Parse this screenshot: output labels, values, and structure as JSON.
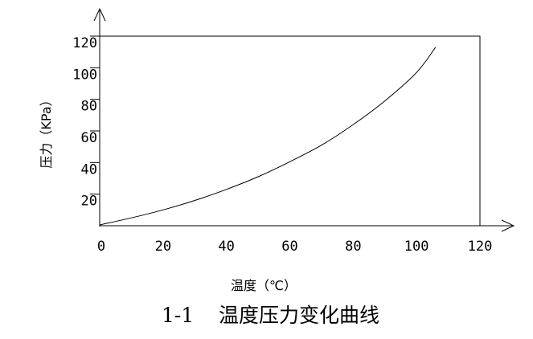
{
  "chart_data": {
    "type": "line",
    "title": "",
    "xlabel": "温度（℃）",
    "ylabel": "压力（KPa）",
    "xlim": [
      0,
      120
    ],
    "ylim": [
      0,
      120
    ],
    "x_ticks": [
      "0",
      "20",
      "40",
      "60",
      "80",
      "100",
      "120"
    ],
    "y_ticks": [
      "20",
      "40",
      "60",
      "80",
      "100",
      "120"
    ],
    "grid": false,
    "series": [
      {
        "x": [
          0,
          10,
          20,
          30,
          40,
          50,
          60,
          70,
          80,
          90,
          100,
          106
        ],
        "y": [
          0.5,
          5,
          10,
          16,
          23,
          31,
          40.5,
          51,
          64,
          79,
          97,
          113
        ]
      }
    ]
  },
  "caption": {
    "number": "1-1",
    "text": "温度压力变化曲线"
  },
  "colors": {
    "line": "#000000",
    "background": "#ffffff"
  }
}
